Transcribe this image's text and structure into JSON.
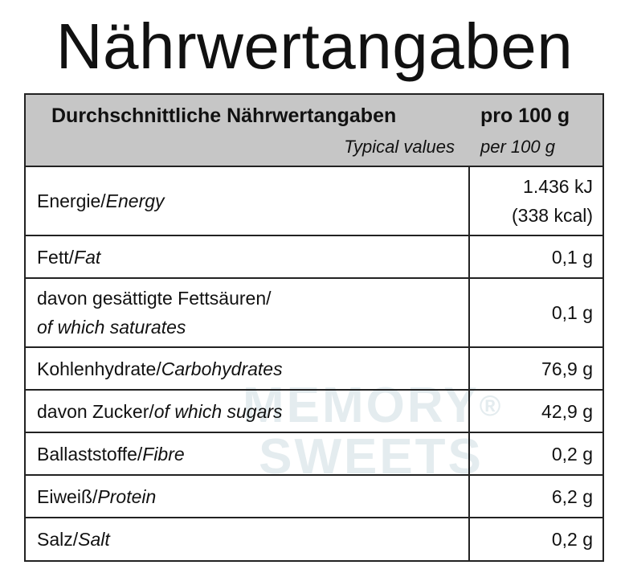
{
  "title": "Nährwertangaben",
  "watermark": {
    "line1": "MEMORY",
    "mark": "®",
    "line2": "SWEETS"
  },
  "header": {
    "col1_de": "Durchschnittliche Nährwertangaben",
    "col1_en": "Typical values",
    "col2_de": "pro 100 g",
    "col2_en": "per 100 g"
  },
  "rows": [
    {
      "de": "Energie/",
      "en": "Energy",
      "value1": "1.436 kJ",
      "value2": "(338 kcal)"
    },
    {
      "de": "Fett/",
      "en": "Fat",
      "value": "0,1 g"
    },
    {
      "de": "davon gesättigte Fettsäuren/",
      "en": "of which saturates",
      "value": "0,1 g"
    },
    {
      "de": "Kohlenhydrate/",
      "en": "Carbohydrates",
      "value": "76,9 g"
    },
    {
      "de": "davon Zucker/",
      "en": "of which sugars",
      "value": "42,9 g"
    },
    {
      "de": "Ballaststoffe/",
      "en": "Fibre",
      "value": "0,2 g"
    },
    {
      "de": "Eiweiß/",
      "en": "Protein",
      "value": "6,2 g"
    },
    {
      "de": "Salz/",
      "en": "Salt",
      "value": "0,2 g"
    }
  ]
}
